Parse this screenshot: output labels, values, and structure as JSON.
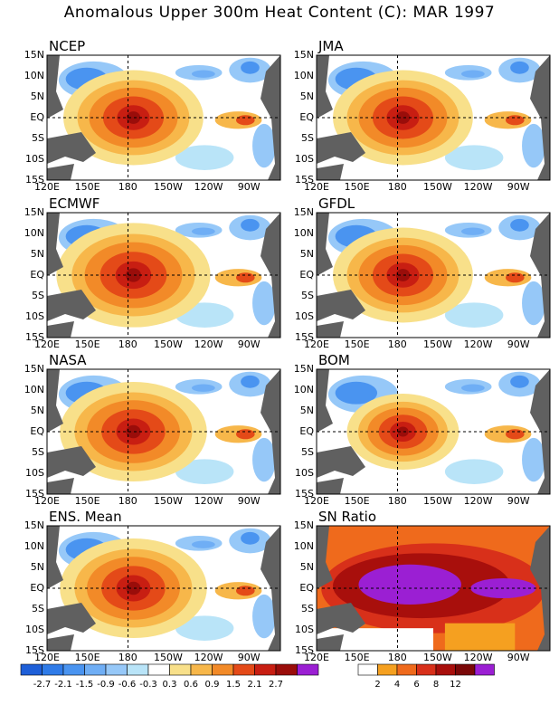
{
  "title": "Anomalous Upper 300m Heat Content (C): MAR 1997",
  "axes": {
    "lat_labels": [
      "15N",
      "10N",
      "5N",
      "EQ",
      "5S",
      "10S",
      "15S"
    ],
    "lon_labels": [
      "120E",
      "150E",
      "180",
      "150W",
      "120W",
      "90W"
    ]
  },
  "panels": [
    {
      "name": "NCEP"
    },
    {
      "name": "JMA"
    },
    {
      "name": "ECMWF"
    },
    {
      "name": "GFDL"
    },
    {
      "name": "NASA"
    },
    {
      "name": "BOM"
    },
    {
      "name": "ENS. Mean"
    },
    {
      "name": "SN Ratio"
    }
  ],
  "colorbar_anomaly": {
    "labels": [
      "-2.7",
      "-2.1",
      "-1.5",
      "-0.9",
      "-0.6",
      "-0.3",
      "0.3",
      "0.6",
      "0.9",
      "1.5",
      "2.1",
      "2.7"
    ],
    "colors": [
      "#1e5fd8",
      "#2f7be8",
      "#4a94f0",
      "#6faef5",
      "#96c8f8",
      "#b9e4f8",
      "#ffffff",
      "#f8e08a",
      "#f7b74a",
      "#f28a28",
      "#e44a18",
      "#c81e12",
      "#9a0d0a",
      "#9b1fd3"
    ]
  },
  "colorbar_sn": {
    "labels": [
      "2",
      "4",
      "6",
      "8",
      "12"
    ],
    "colors": [
      "#ffffff",
      "#f5a020",
      "#ef6a1c",
      "#d8301a",
      "#a80f0c",
      "#7a0808",
      "#9b1fd3"
    ]
  },
  "land_color": "#606060"
}
